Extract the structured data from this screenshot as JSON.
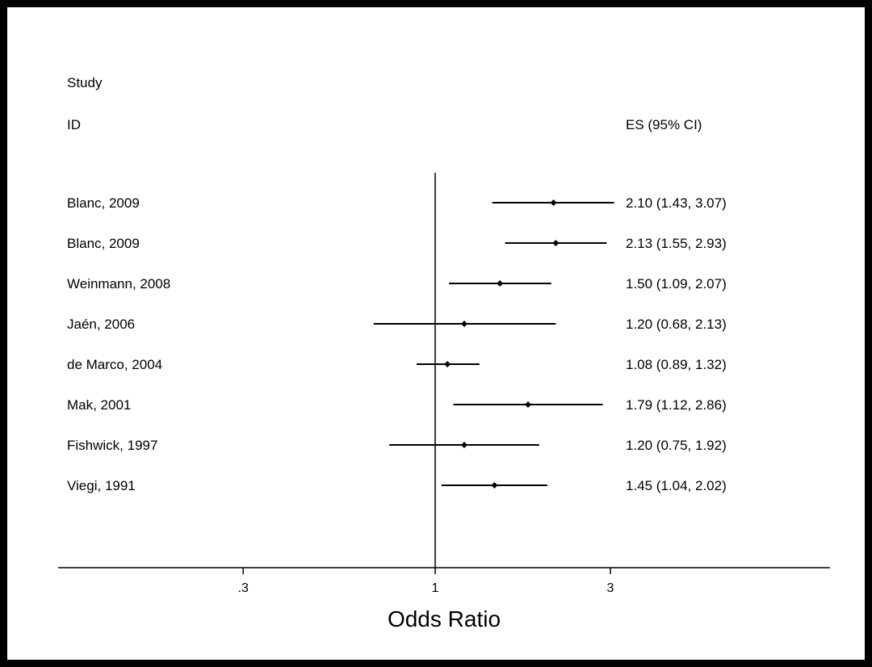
{
  "chart_data": {
    "type": "forest",
    "header": {
      "col1": "Study",
      "col1b": "ID",
      "col2": "ES (95% CI)"
    },
    "xlabel": "Odds Ratio",
    "xscale": "log",
    "xlim": [
      0.12,
      8.3
    ],
    "reference_line": 1,
    "xticks": [
      {
        "value": 0.3,
        "label": ".3"
      },
      {
        "value": 1,
        "label": "1"
      },
      {
        "value": 3,
        "label": "3"
      }
    ],
    "studies": [
      {
        "label": "Blanc, 2009",
        "es": 2.1,
        "lo": 1.43,
        "hi": 3.07,
        "text": "2.10 (1.43, 3.07)"
      },
      {
        "label": "Blanc, 2009",
        "es": 2.13,
        "lo": 1.55,
        "hi": 2.93,
        "text": "2.13 (1.55, 2.93)"
      },
      {
        "label": "Weinmann, 2008",
        "es": 1.5,
        "lo": 1.09,
        "hi": 2.07,
        "text": "1.50 (1.09, 2.07)"
      },
      {
        "label": "Jaén, 2006",
        "es": 1.2,
        "lo": 0.68,
        "hi": 2.13,
        "text": "1.20 (0.68, 2.13)"
      },
      {
        "label": "de Marco, 2004",
        "es": 1.08,
        "lo": 0.89,
        "hi": 1.32,
        "text": "1.08 (0.89, 1.32)"
      },
      {
        "label": "Mak, 2001",
        "es": 1.79,
        "lo": 1.12,
        "hi": 2.86,
        "text": "1.79 (1.12, 2.86)"
      },
      {
        "label": "Fishwick, 1997",
        "es": 1.2,
        "lo": 0.75,
        "hi": 1.92,
        "text": "1.20 (0.75, 1.92)"
      },
      {
        "label": "Viegi, 1991",
        "es": 1.45,
        "lo": 1.04,
        "hi": 2.02,
        "text": "1.45 (1.04, 2.02)"
      }
    ]
  }
}
